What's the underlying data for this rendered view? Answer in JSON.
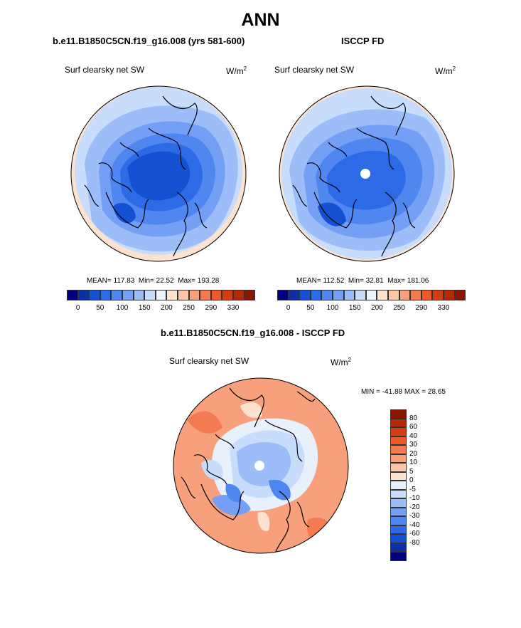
{
  "title": "ANN",
  "panels": [
    {
      "case": "b.e11.B1850C5CN.f19_g16.008 (yrs 581-600)",
      "variable": "Surf clearsky net SW",
      "units": "W/m",
      "units_exp": "2",
      "mean_label": "MEAN=",
      "mean": "117.83",
      "min_label": "Min=",
      "min": "22.52",
      "max_label": "Max=",
      "max": "193.28",
      "has_missing_pole": false
    },
    {
      "case": "ISCCP FD",
      "variable": "Surf clearsky net SW",
      "units": "W/m",
      "units_exp": "2",
      "mean_label": "MEAN=",
      "mean": "112.52",
      "min_label": "Min=",
      "min": "32.81",
      "max_label": "Max=",
      "max": "181.06",
      "has_missing_pole": true
    }
  ],
  "diff_panel": {
    "case": "b.e11.B1850C5CN.f19_g16.008 - ISCCP FD",
    "variable": "Surf clearsky net SW",
    "units": "W/m",
    "units_exp": "2",
    "minmax": "MIN = -41.88 MAX =  28.65",
    "has_missing_pole": true
  },
  "colorbar_top": {
    "colors": [
      "#00007f",
      "#0a2fa8",
      "#1450d2",
      "#2d6ae6",
      "#4f86f0",
      "#739ff5",
      "#9dbdf8",
      "#c8dcfb",
      "#eef3fc",
      "#fde3cf",
      "#fbc6a6",
      "#f8a07c",
      "#f47a52",
      "#ec5a2a",
      "#d33d12",
      "#b42a08",
      "#8a1505"
    ],
    "labels": [
      "0",
      "50",
      "100",
      "150",
      "200",
      "250",
      "290",
      "330"
    ]
  },
  "colorbar_diff": {
    "colors": [
      "#8a1505",
      "#b42a08",
      "#d33d12",
      "#ec5a2a",
      "#f47a52",
      "#f8a07c",
      "#fbc6a6",
      "#fde3cf",
      "#e8f0fb",
      "#c8dcfb",
      "#9dbdf8",
      "#739ff5",
      "#4f86f0",
      "#2d6ae6",
      "#1450d2",
      "#0a2fa8",
      "#00007f"
    ],
    "labels": [
      "80",
      "60",
      "40",
      "30",
      "20",
      "10",
      "5",
      "0",
      "-5",
      "-10",
      "-20",
      "-30",
      "-40",
      "-60",
      "-80"
    ]
  }
}
